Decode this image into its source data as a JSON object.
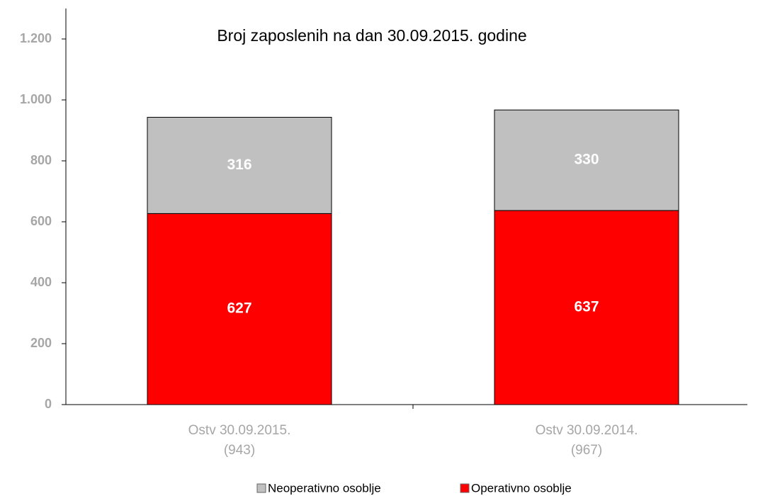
{
  "chart_data": {
    "type": "stacked_bar",
    "title": "Broj zaposlenih na dan 30.09.2015. godine",
    "categories": [
      [
        "Ostv 30.09.2015.",
        "(943)"
      ],
      [
        "Ostv 30.09.2014.",
        "(967)"
      ]
    ],
    "series": [
      {
        "name": "Operativno osoblje",
        "color": "#ff0000",
        "values": [
          627,
          637
        ]
      },
      {
        "name": "Neoperativno osoblje",
        "color": "#c0c0c0",
        "values": [
          316,
          330
        ]
      }
    ],
    "legend_order": [
      1,
      0
    ],
    "ylim": [
      0,
      1300
    ],
    "yticks": [
      0,
      200,
      400,
      600,
      800,
      {
        "value": 1000,
        "label": "1.000"
      },
      {
        "value": 1200,
        "label": "1.200"
      }
    ],
    "grid": false
  }
}
